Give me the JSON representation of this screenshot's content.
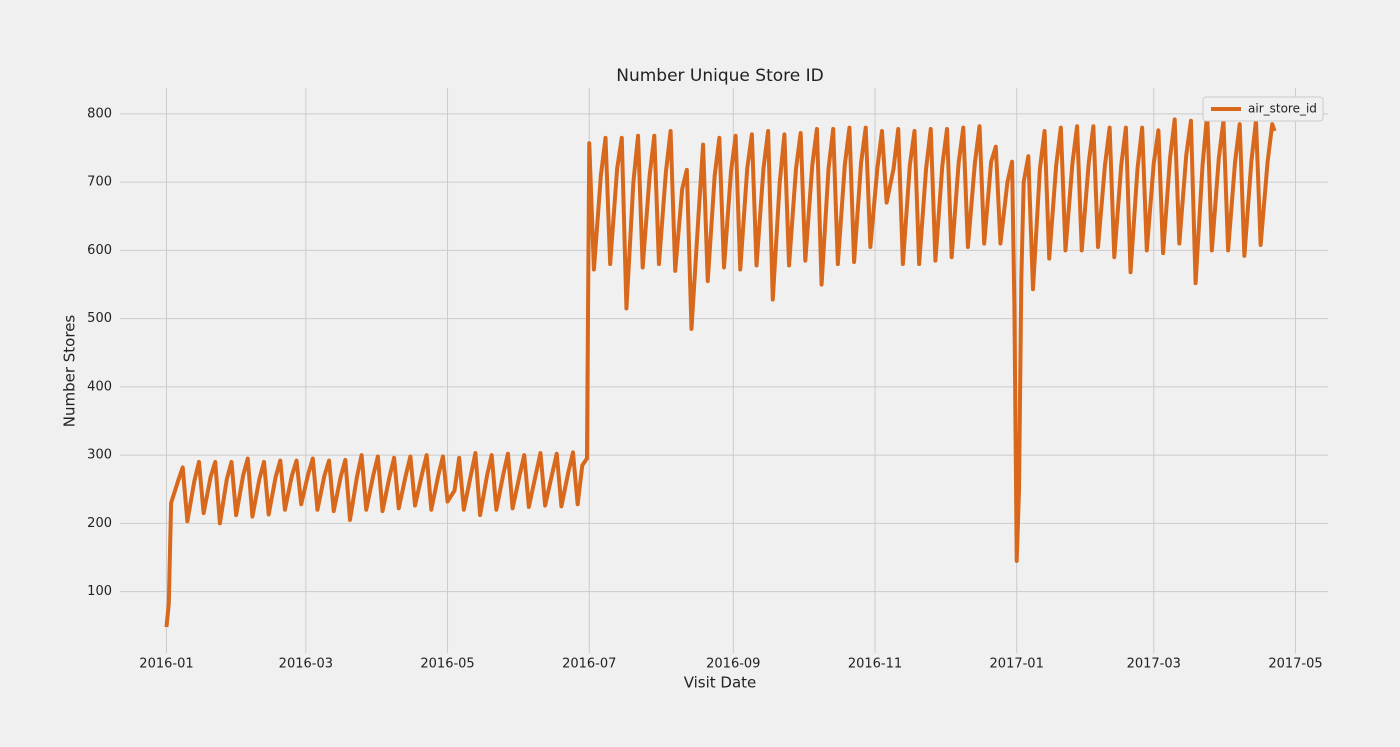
{
  "chart_data": {
    "type": "line",
    "title": "Number Unique Store ID",
    "xlabel": "Visit Date",
    "ylabel": "Number Stores",
    "x": [
      "2016-01-01",
      "2016-01-02",
      "2016-01-03",
      "2016-01-06",
      "2016-01-08",
      "2016-01-10",
      "2016-01-13",
      "2016-01-15",
      "2016-01-17",
      "2016-01-20",
      "2016-01-22",
      "2016-01-24",
      "2016-01-27",
      "2016-01-29",
      "2016-01-31",
      "2016-02-03",
      "2016-02-05",
      "2016-02-07",
      "2016-02-10",
      "2016-02-12",
      "2016-02-14",
      "2016-02-17",
      "2016-02-19",
      "2016-02-21",
      "2016-02-24",
      "2016-02-26",
      "2016-02-28",
      "2016-03-02",
      "2016-03-04",
      "2016-03-06",
      "2016-03-09",
      "2016-03-11",
      "2016-03-13",
      "2016-03-16",
      "2016-03-18",
      "2016-03-20",
      "2016-03-23",
      "2016-03-25",
      "2016-03-27",
      "2016-03-30",
      "2016-04-01",
      "2016-04-03",
      "2016-04-06",
      "2016-04-08",
      "2016-04-10",
      "2016-04-13",
      "2016-04-15",
      "2016-04-17",
      "2016-04-20",
      "2016-04-22",
      "2016-04-24",
      "2016-04-27",
      "2016-04-29",
      "2016-05-01",
      "2016-05-04",
      "2016-05-06",
      "2016-05-08",
      "2016-05-11",
      "2016-05-13",
      "2016-05-15",
      "2016-05-18",
      "2016-05-20",
      "2016-05-22",
      "2016-05-25",
      "2016-05-27",
      "2016-05-29",
      "2016-06-01",
      "2016-06-03",
      "2016-06-05",
      "2016-06-08",
      "2016-06-10",
      "2016-06-12",
      "2016-06-15",
      "2016-06-17",
      "2016-06-19",
      "2016-06-22",
      "2016-06-24",
      "2016-06-26",
      "2016-06-28",
      "2016-06-30",
      "2016-07-01",
      "2016-07-03",
      "2016-07-06",
      "2016-07-08",
      "2016-07-10",
      "2016-07-13",
      "2016-07-15",
      "2016-07-17",
      "2016-07-20",
      "2016-07-22",
      "2016-07-24",
      "2016-07-27",
      "2016-07-29",
      "2016-07-31",
      "2016-08-03",
      "2016-08-05",
      "2016-08-07",
      "2016-08-10",
      "2016-08-12",
      "2016-08-14",
      "2016-08-17",
      "2016-08-19",
      "2016-08-21",
      "2016-08-24",
      "2016-08-26",
      "2016-08-28",
      "2016-08-31",
      "2016-09-02",
      "2016-09-04",
      "2016-09-07",
      "2016-09-09",
      "2016-09-11",
      "2016-09-14",
      "2016-09-16",
      "2016-09-18",
      "2016-09-21",
      "2016-09-23",
      "2016-09-25",
      "2016-09-28",
      "2016-09-30",
      "2016-10-02",
      "2016-10-05",
      "2016-10-07",
      "2016-10-09",
      "2016-10-12",
      "2016-10-14",
      "2016-10-16",
      "2016-10-19",
      "2016-10-21",
      "2016-10-23",
      "2016-10-26",
      "2016-10-28",
      "2016-10-30",
      "2016-11-02",
      "2016-11-04",
      "2016-11-06",
      "2016-11-09",
      "2016-11-11",
      "2016-11-13",
      "2016-11-16",
      "2016-11-18",
      "2016-11-20",
      "2016-11-23",
      "2016-11-25",
      "2016-11-27",
      "2016-11-30",
      "2016-12-02",
      "2016-12-04",
      "2016-12-07",
      "2016-12-09",
      "2016-12-11",
      "2016-12-14",
      "2016-12-16",
      "2016-12-18",
      "2016-12-21",
      "2016-12-23",
      "2016-12-25",
      "2016-12-28",
      "2016-12-30",
      "2016-12-31",
      "2017-01-01",
      "2017-01-02",
      "2017-01-03",
      "2017-01-04",
      "2017-01-06",
      "2017-01-08",
      "2017-01-11",
      "2017-01-13",
      "2017-01-15",
      "2017-01-18",
      "2017-01-20",
      "2017-01-22",
      "2017-01-25",
      "2017-01-27",
      "2017-01-29",
      "2017-02-01",
      "2017-02-03",
      "2017-02-05",
      "2017-02-08",
      "2017-02-10",
      "2017-02-12",
      "2017-02-15",
      "2017-02-17",
      "2017-02-19",
      "2017-02-22",
      "2017-02-24",
      "2017-02-26",
      "2017-03-01",
      "2017-03-03",
      "2017-03-05",
      "2017-03-08",
      "2017-03-10",
      "2017-03-12",
      "2017-03-15",
      "2017-03-17",
      "2017-03-19",
      "2017-03-22",
      "2017-03-24",
      "2017-03-26",
      "2017-03-29",
      "2017-03-31",
      "2017-04-02",
      "2017-04-05",
      "2017-04-07",
      "2017-04-09",
      "2017-04-12",
      "2017-04-14",
      "2017-04-16",
      "2017-04-19",
      "2017-04-21",
      "2017-04-22"
    ],
    "series": [
      {
        "name": "air_store_id",
        "color": "#d8691c",
        "values": [
          48,
          82,
          230,
          262,
          282,
          203,
          262,
          290,
          215,
          268,
          290,
          200,
          265,
          290,
          212,
          270,
          295,
          210,
          265,
          290,
          213,
          268,
          292,
          220,
          270,
          292,
          228,
          272,
          295,
          220,
          270,
          292,
          218,
          268,
          293,
          205,
          268,
          300,
          220,
          270,
          298,
          218,
          268,
          296,
          222,
          270,
          298,
          226,
          272,
          300,
          220,
          270,
          298,
          232,
          248,
          296,
          220,
          270,
          303,
          212,
          270,
          300,
          220,
          272,
          302,
          222,
          270,
          300,
          224,
          272,
          303,
          226,
          272,
          302,
          225,
          275,
          304,
          228,
          285,
          295,
          757,
          572,
          710,
          765,
          580,
          720,
          765,
          515,
          700,
          768,
          575,
          710,
          768,
          580,
          715,
          775,
          570,
          690,
          718,
          485,
          650,
          755,
          555,
          710,
          765,
          575,
          715,
          768,
          572,
          720,
          770,
          578,
          720,
          775,
          528,
          700,
          770,
          578,
          720,
          772,
          585,
          725,
          778,
          550,
          720,
          778,
          580,
          725,
          780,
          583,
          728,
          780,
          605,
          720,
          775,
          670,
          720,
          778,
          580,
          725,
          775,
          580,
          720,
          778,
          585,
          725,
          778,
          590,
          728,
          780,
          605,
          728,
          782,
          610,
          730,
          752,
          610,
          700,
          730,
          520,
          145,
          250,
          560,
          700,
          738,
          543,
          720,
          775,
          588,
          725,
          780,
          600,
          728,
          782,
          600,
          728,
          782,
          605,
          725,
          780,
          590,
          725,
          780,
          568,
          720,
          780,
          600,
          728,
          776,
          596,
          735,
          792,
          610,
          740,
          790,
          552,
          725,
          800,
          600,
          735,
          790,
          600,
          730,
          785,
          592,
          730,
          790,
          608,
          730,
          785,
          775
        ]
      }
    ],
    "xlim": [
      "2015-12-12",
      "2017-05-15"
    ],
    "xticks": [
      {
        "value": "2016-01-01",
        "label": "2016-01"
      },
      {
        "value": "2016-03-01",
        "label": "2016-03"
      },
      {
        "value": "2016-05-01",
        "label": "2016-05"
      },
      {
        "value": "2016-07-01",
        "label": "2016-07"
      },
      {
        "value": "2016-09-01",
        "label": "2016-09"
      },
      {
        "value": "2016-11-01",
        "label": "2016-11"
      },
      {
        "value": "2017-01-01",
        "label": "2017-01"
      },
      {
        "value": "2017-03-01",
        "label": "2017-03"
      },
      {
        "value": "2017-05-01",
        "label": "2017-05"
      }
    ],
    "ylim": [
      10,
      838
    ],
    "yticks": [
      100,
      200,
      300,
      400,
      500,
      600,
      700,
      800
    ],
    "grid": true,
    "legend": "upper right"
  }
}
